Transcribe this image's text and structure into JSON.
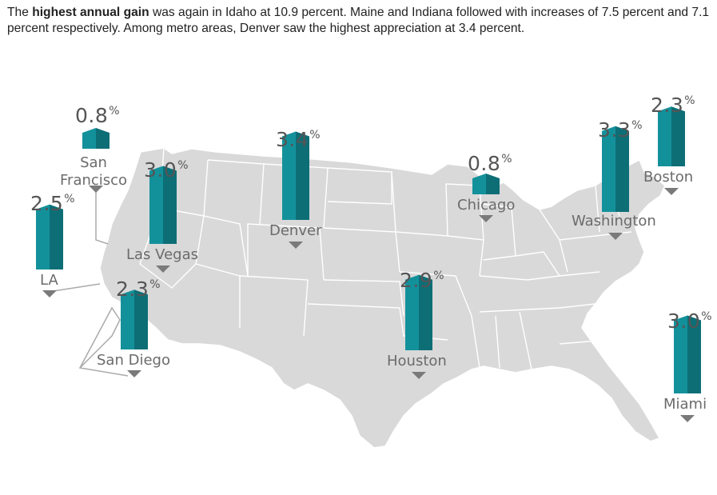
{
  "intro": {
    "part1": "The ",
    "bold": "highest annual gain",
    "part2": " was again in Idaho at 10.9 percent. Maine and Indiana followed with increases of 7.5 percent and 7.1 percent respectively.  Among metro areas, Denver saw the highest appreciation at 3.4 percent."
  },
  "map": {
    "land_color": "#d9d9d9",
    "bar_color": "#13919b",
    "bar_dark": "#0d6e76",
    "marker_color": "#7a7a7a"
  },
  "metros": [
    {
      "id": "san-francisco",
      "city": "San\nFrancisco",
      "value": 0.8,
      "value_label": "0.8",
      "unit": "%"
    },
    {
      "id": "la",
      "city": "LA",
      "value": 2.5,
      "value_label": "2.5",
      "unit": "%"
    },
    {
      "id": "las-vegas",
      "city": "Las Vegas",
      "value": 3.0,
      "value_label": "3.0",
      "unit": "%"
    },
    {
      "id": "san-diego",
      "city": "San Diego",
      "value": 2.3,
      "value_label": "2.3",
      "unit": "%"
    },
    {
      "id": "denver",
      "city": "Denver",
      "value": 3.4,
      "value_label": "3.4",
      "unit": "%"
    },
    {
      "id": "houston",
      "city": "Houston",
      "value": 2.9,
      "value_label": "2.9",
      "unit": "%"
    },
    {
      "id": "chicago",
      "city": "Chicago",
      "value": 0.8,
      "value_label": "0.8",
      "unit": "%"
    },
    {
      "id": "washington",
      "city": "Washington",
      "value": 3.3,
      "value_label": "3.3",
      "unit": "%"
    },
    {
      "id": "boston",
      "city": "Boston",
      "value": 2.3,
      "value_label": "2.3",
      "unit": "%"
    },
    {
      "id": "miami",
      "city": "Miami",
      "value": 3.0,
      "value_label": "3.0",
      "unit": "%"
    }
  ]
}
